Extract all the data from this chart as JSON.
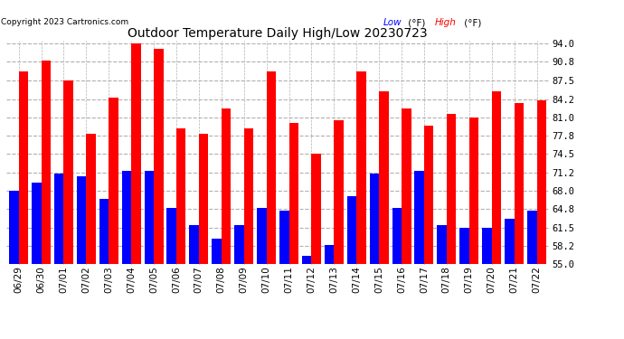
{
  "title": "Outdoor Temperature Daily High/Low 20230723",
  "copyright": "Copyright 2023 Cartronics.com",
  "dates": [
    "06/29",
    "06/30",
    "07/01",
    "07/02",
    "07/03",
    "07/04",
    "07/05",
    "07/06",
    "07/07",
    "07/08",
    "07/09",
    "07/10",
    "07/11",
    "07/12",
    "07/13",
    "07/14",
    "07/15",
    "07/16",
    "07/17",
    "07/18",
    "07/19",
    "07/20",
    "07/21",
    "07/22"
  ],
  "highs": [
    89.0,
    91.0,
    87.5,
    78.0,
    84.5,
    94.0,
    93.0,
    79.0,
    78.0,
    82.5,
    79.0,
    89.0,
    80.0,
    74.5,
    80.5,
    89.0,
    85.5,
    82.5,
    79.5,
    81.5,
    81.0,
    85.5,
    83.5,
    84.0
  ],
  "lows": [
    68.0,
    69.5,
    71.0,
    70.5,
    66.5,
    71.5,
    71.5,
    65.0,
    62.0,
    59.5,
    62.0,
    65.0,
    64.5,
    56.5,
    58.5,
    67.0,
    71.0,
    65.0,
    71.5,
    62.0,
    61.5,
    61.5,
    63.0,
    64.5
  ],
  "high_color": "#ff0000",
  "low_color": "#0000ff",
  "background_color": "#ffffff",
  "ylim_min": 55.0,
  "ylim_max": 94.0,
  "yticks": [
    55.0,
    58.2,
    61.5,
    64.8,
    68.0,
    71.2,
    74.5,
    77.8,
    81.0,
    84.2,
    87.5,
    90.8,
    94.0
  ],
  "grid_color": "#b0b0b0",
  "bar_width": 0.42
}
